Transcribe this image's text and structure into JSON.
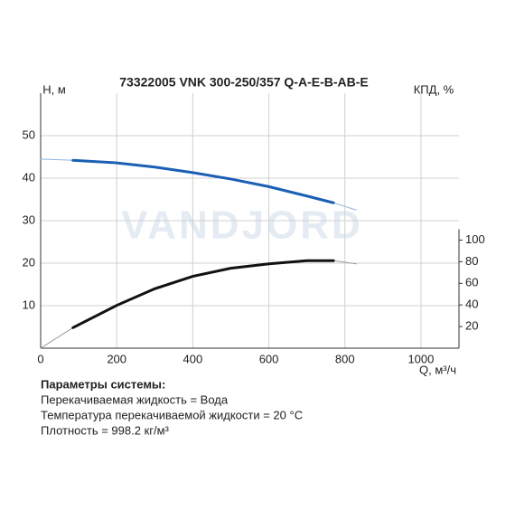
{
  "chart_data": {
    "type": "line",
    "title": "73322005 VNK 300-250/357 Q-A-E-B-AB-E",
    "watermark": "VANDJORD",
    "y_label": "H, м",
    "y2_label": "КПД, %",
    "x_label": "Q, м³/ч",
    "xlim": [
      0,
      1100
    ],
    "xticks": [
      0,
      200,
      400,
      600,
      800,
      1000
    ],
    "ylim": [
      0,
      60
    ],
    "yticks": [
      10,
      20,
      30,
      40,
      50
    ],
    "y2lim": [
      0,
      236
    ],
    "y2ticks": [
      20,
      40,
      60,
      80,
      100
    ],
    "grid": true,
    "series": [
      {
        "color": "#8fb4e0",
        "line_width": 1,
        "x": [
          0,
          85,
          null,
          770,
          830
        ],
        "values": [
          44.5,
          44.2,
          null,
          34.2,
          32.5
        ]
      },
      {
        "color": "#1a5fb4",
        "line_width": 3,
        "x": [
          85,
          200,
          300,
          400,
          500,
          600,
          700,
          770
        ],
        "values": [
          44.2,
          43.6,
          42.6,
          41.3,
          39.8,
          38.0,
          35.8,
          34.2
        ]
      },
      {
        "color": "#9a9a9a",
        "line_width": 1,
        "axis": "y2",
        "x": [
          0,
          85,
          null,
          770,
          830
        ],
        "values": [
          0,
          19,
          null,
          81,
          78
        ]
      },
      {
        "color": "#111111",
        "line_width": 3,
        "axis": "y2",
        "x": [
          85,
          200,
          300,
          400,
          500,
          600,
          700,
          770
        ],
        "values": [
          19,
          39.6,
          55,
          66.5,
          74,
          78,
          81,
          81
        ]
      }
    ]
  },
  "notes": {
    "heading": "Параметры системы:",
    "lines": [
      "Перекачиваемая жидкость = Вода",
      "Температура перекачиваемой жидкости = 20 °C",
      "Плотность = 998.2 кг/м³"
    ]
  }
}
